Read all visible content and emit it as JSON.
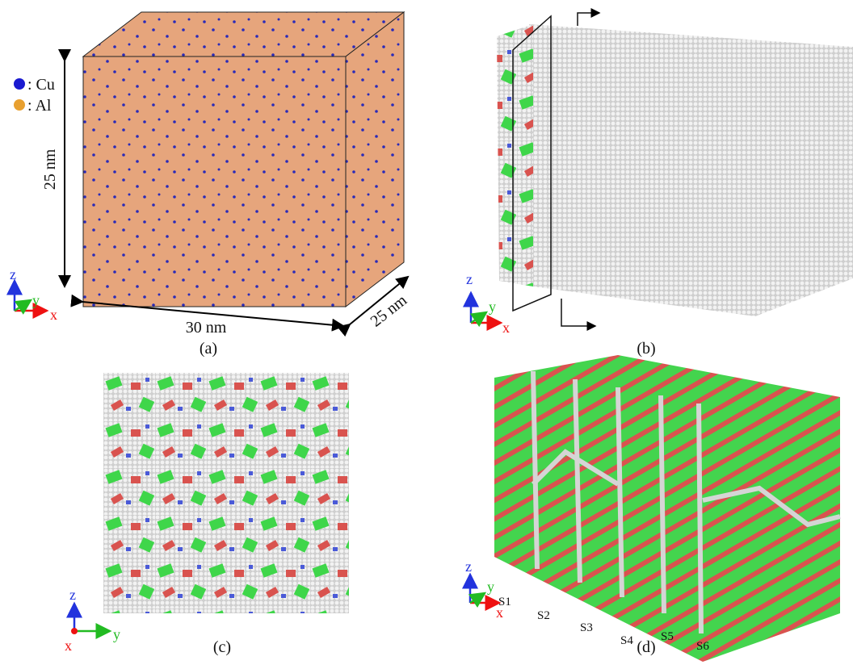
{
  "legend": {
    "cu": ": Cu",
    "al": ": Al"
  },
  "panels": {
    "a": {
      "label": "(a)",
      "height": "25 nm",
      "width": "30 nm",
      "depth": "25 nm",
      "axes": {
        "z": "z",
        "y": "y",
        "x": "x"
      }
    },
    "b": {
      "label": "(b)",
      "axes": {
        "z": "z",
        "y": "y",
        "x": "x"
      }
    },
    "c": {
      "label": "(c)",
      "axes": {
        "z": "z",
        "y": "y",
        "x": "x"
      }
    },
    "d": {
      "label": "(d)",
      "axes": {
        "z": "z",
        "y": "y",
        "x": "x"
      },
      "slices": [
        "S1",
        "S2",
        "S3",
        "S4",
        "S5",
        "S6"
      ]
    }
  }
}
